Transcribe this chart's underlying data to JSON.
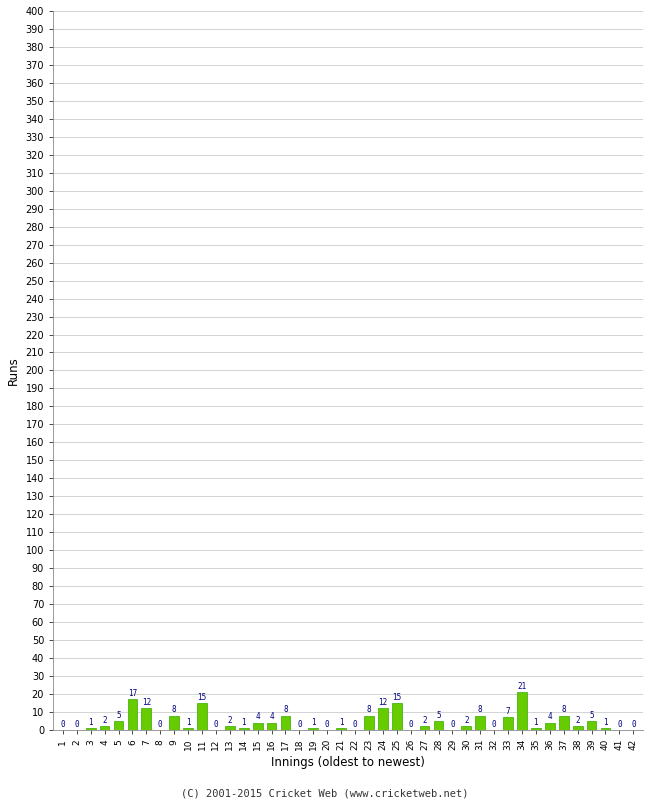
{
  "innings": [
    1,
    2,
    3,
    4,
    5,
    6,
    7,
    8,
    9,
    10,
    11,
    12,
    13,
    14,
    15,
    16,
    17,
    18,
    19,
    20,
    21,
    22,
    23,
    24,
    25,
    26,
    27,
    28,
    29,
    30,
    31,
    32,
    33,
    34,
    35,
    36,
    37,
    38,
    39,
    40,
    41,
    42
  ],
  "runs": [
    0,
    0,
    1,
    2,
    5,
    17,
    12,
    0,
    8,
    1,
    15,
    0,
    2,
    1,
    4,
    4,
    8,
    0,
    1,
    0,
    1,
    0,
    8,
    12,
    15,
    0,
    2,
    5,
    0,
    2,
    8,
    0,
    7,
    21,
    1,
    4,
    8,
    2,
    5,
    1,
    0,
    0
  ],
  "bar_color": "#66cc00",
  "bar_edge_color": "#33aa00",
  "label_color": "#000080",
  "xlabel": "Innings (oldest to newest)",
  "ylabel": "Runs",
  "ylim": [
    0,
    400
  ],
  "yticks": [
    0,
    10,
    20,
    30,
    40,
    50,
    60,
    70,
    80,
    90,
    100,
    110,
    120,
    130,
    140,
    150,
    160,
    170,
    180,
    190,
    200,
    210,
    220,
    230,
    240,
    250,
    260,
    270,
    280,
    290,
    300,
    310,
    320,
    330,
    340,
    350,
    360,
    370,
    380,
    390,
    400
  ],
  "footer": "(C) 2001-2015 Cricket Web (www.cricketweb.net)",
  "background_color": "#ffffff",
  "grid_color": "#cccccc"
}
